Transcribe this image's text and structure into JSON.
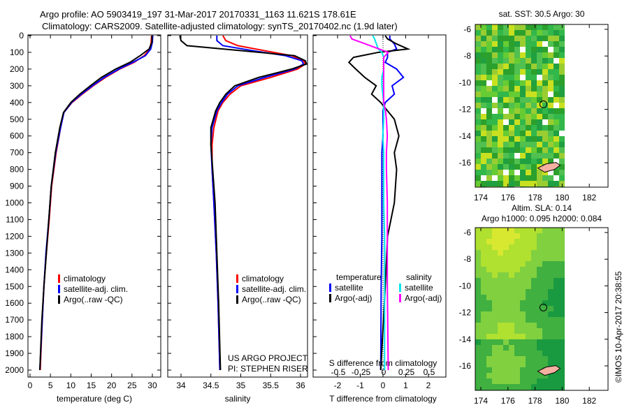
{
  "header": {
    "title_line1": "Argo profile: AO 5903419_197 31-Mar-2017 20170331_1163 11.621S 178.61E",
    "title_line2": "Climatology: CARS2009. Satellite-adjusted climatology: synTS_20170402.nc (1.9d later)"
  },
  "footer": {
    "stamp": "©IMOS 10-Apr-2017 20:38:55"
  },
  "colors": {
    "climatology": "#ff0000",
    "satellite": "#0000ff",
    "argo": "#000000",
    "sal_sat": "#00e5ee",
    "sal_argo": "#ff00ff"
  },
  "chart_data": [
    {
      "type": "line",
      "id": "temp",
      "xlabel": "temperature (deg C)",
      "xlim": [
        -1,
        31
      ],
      "xticks": [
        "0",
        "5",
        "10",
        "15",
        "20",
        "25",
        "30"
      ],
      "xtickvals": [
        0,
        5,
        10,
        15,
        20,
        25,
        30
      ],
      "ylim": [
        0,
        2050
      ],
      "yticks": [
        "0",
        "100",
        "200",
        "300",
        "400",
        "500",
        "600",
        "700",
        "800",
        "900",
        "1000",
        "1100",
        "1200",
        "1300",
        "1400",
        "1500",
        "1600",
        "1700",
        "1800",
        "1900",
        "2000"
      ],
      "legend": [
        "climatology",
        "satellite-adj. clim.",
        "Argo(..raw -QC)"
      ],
      "depth": [
        0,
        40,
        80,
        120,
        160,
        200,
        250,
        300,
        350,
        400,
        460,
        550,
        700,
        900,
        1100,
        1300,
        1500,
        1700,
        2000
      ],
      "series": [
        {
          "name": "climatology",
          "values": [
            29.8,
            29.7,
            29.4,
            28,
            25.5,
            22,
            18.5,
            15.5,
            12.8,
            10.3,
            8.3,
            7.5,
            6.4,
            5.3,
            4.7,
            4,
            3.4,
            3,
            2.5
          ]
        },
        {
          "name": "satellite-adj. clim.",
          "values": [
            30.1,
            30,
            29.6,
            28.3,
            25.2,
            21.8,
            18.2,
            15.3,
            12.6,
            10.2,
            8.3,
            7.5,
            6.3,
            5.2,
            4.6,
            3.9,
            3.4,
            3,
            2.4
          ]
        },
        {
          "name": "Argo(..raw -QC)",
          "values": [
            29.9,
            29.9,
            29.2,
            27,
            24.5,
            21,
            17.5,
            14.8,
            12.2,
            10,
            8.2,
            7.3,
            6.2,
            5.2,
            4.6,
            4,
            3.4,
            2.9,
            2.4
          ]
        }
      ]
    },
    {
      "type": "line",
      "id": "sal",
      "xlabel": "salinity",
      "xlim": [
        33.7,
        36.3
      ],
      "xticks": [
        "34",
        "34.5",
        "35",
        "35.5",
        "36"
      ],
      "xtickvals": [
        34,
        34.5,
        35,
        35.5,
        36
      ],
      "legend": [
        "climatology",
        "satellite-adj. clim.",
        "Argo(..raw -QC)"
      ],
      "annotation": [
        "US ARGO PROJECT",
        "PI: STEPHEN RISER"
      ],
      "depth": [
        0,
        30,
        60,
        90,
        120,
        150,
        170,
        200,
        250,
        300,
        350,
        400,
        450,
        550,
        650,
        800,
        1000,
        1300,
        1600,
        2000
      ],
      "series": [
        {
          "name": "climatology",
          "values": [
            34.7,
            34.75,
            34.95,
            35.4,
            35.85,
            36.05,
            36.08,
            35.95,
            35.5,
            35.0,
            34.82,
            34.7,
            34.62,
            34.55,
            34.52,
            34.52,
            34.55,
            34.59,
            34.62,
            34.65
          ]
        },
        {
          "name": "satellite-adj. clim.",
          "values": [
            34.6,
            34.6,
            34.7,
            35.2,
            35.75,
            36.02,
            36.05,
            35.9,
            35.4,
            34.95,
            34.78,
            34.68,
            34.6,
            34.52,
            34.5,
            34.52,
            34.55,
            34.59,
            34.62,
            34.65
          ]
        },
        {
          "name": "Argo(..raw -QC)",
          "values": [
            33.98,
            34.0,
            34.1,
            35.0,
            35.9,
            36.08,
            36.1,
            35.85,
            35.3,
            34.9,
            34.75,
            34.65,
            34.58,
            34.5,
            34.5,
            34.53,
            34.57,
            34.6,
            34.63,
            34.66
          ]
        }
      ]
    },
    {
      "type": "line",
      "id": "diff",
      "xlabel": "T difference from climatology",
      "xlim": [
        -2.9,
        3
      ],
      "xticks": [
        "-2",
        "-1",
        "0",
        "1",
        "2"
      ],
      "xtickvals": [
        -2,
        -1,
        0,
        1,
        2
      ],
      "x2label": "S difference from climatology",
      "x2ticks": [
        "-0.5",
        "-0.25",
        "0",
        "0.25",
        "0.5"
      ],
      "x2tickvals": [
        -0.5,
        -0.25,
        0,
        0.25,
        0.5
      ],
      "legend_t": {
        "title": "temperature",
        "items": [
          "satellite",
          "Argo(-adj)"
        ]
      },
      "legend_s": {
        "title": "salinity",
        "items": [
          "satellite",
          "Argo(-adj)"
        ]
      },
      "depth": [
        0,
        20,
        50,
        80,
        100,
        130,
        160,
        200,
        250,
        300,
        350,
        400,
        450,
        500,
        600,
        700,
        800,
        1000,
        1200,
        1500,
        2000
      ],
      "series": [
        {
          "name": "T satellite",
          "axis": "T",
          "values": [
            0.3,
            0.3,
            0.5,
            0.6,
            0.2,
            0.2,
            0.1,
            0.6,
            0.9,
            0.4,
            0.5,
            0.1,
            0.0,
            0.0,
            0.0,
            -0.05,
            -0.05,
            -0.05,
            -0.05,
            -0.08,
            -0.1
          ]
        },
        {
          "name": "T Argo(-adj)",
          "axis": "T",
          "values": [
            0.1,
            0.2,
            0.6,
            1.1,
            -0.2,
            -1.3,
            -1.5,
            -1.2,
            -0.8,
            -0.3,
            -0.5,
            -0.1,
            0.2,
            0.5,
            0.7,
            0.5,
            0.6,
            0.5,
            0.2,
            0.1,
            -0.1
          ]
        },
        {
          "name": "S satellite",
          "axis": "S",
          "values": [
            -0.12,
            -0.1,
            -0.08,
            -0.06,
            -0.02,
            0.0,
            0.0,
            0.0,
            -0.02,
            -0.02,
            -0.01,
            0.0,
            0.0,
            0.0,
            -0.01,
            0.0,
            0.0,
            0.0,
            0.01,
            0.01,
            0.01
          ]
        },
        {
          "name": "S Argo(-adj)",
          "axis": "S",
          "values": [
            -0.37,
            -0.35,
            -0.2,
            -0.05,
            0.05,
            0.0,
            0.0,
            0.0,
            0.0,
            0.0,
            0.0,
            0.0,
            0.02,
            0.03,
            0.04,
            0.03,
            0.03,
            0.04,
            0.04,
            0.04,
            0.05
          ]
        }
      ]
    },
    {
      "type": "heatmap",
      "id": "sst",
      "title": "sat. SST: 30.5 Argo: 30",
      "xticks": [
        "174",
        "176",
        "178",
        "180",
        "182"
      ],
      "yticks": [
        "-6",
        "-8",
        "-10",
        "-12",
        "-14",
        "-16"
      ],
      "argo_lon": 178.61,
      "argo_lat": -11.62
    },
    {
      "type": "heatmap",
      "id": "sla",
      "title": "Altim. SLA: 0.14",
      "subtitle": "Argo h1000: 0.095 h2000: 0.084",
      "xticks": [
        "174",
        "176",
        "178",
        "180",
        "182"
      ],
      "yticks": [
        "-6",
        "-8",
        "-10",
        "-12",
        "-14",
        "-16"
      ],
      "argo_lon": 178.61,
      "argo_lat": -11.62
    }
  ]
}
